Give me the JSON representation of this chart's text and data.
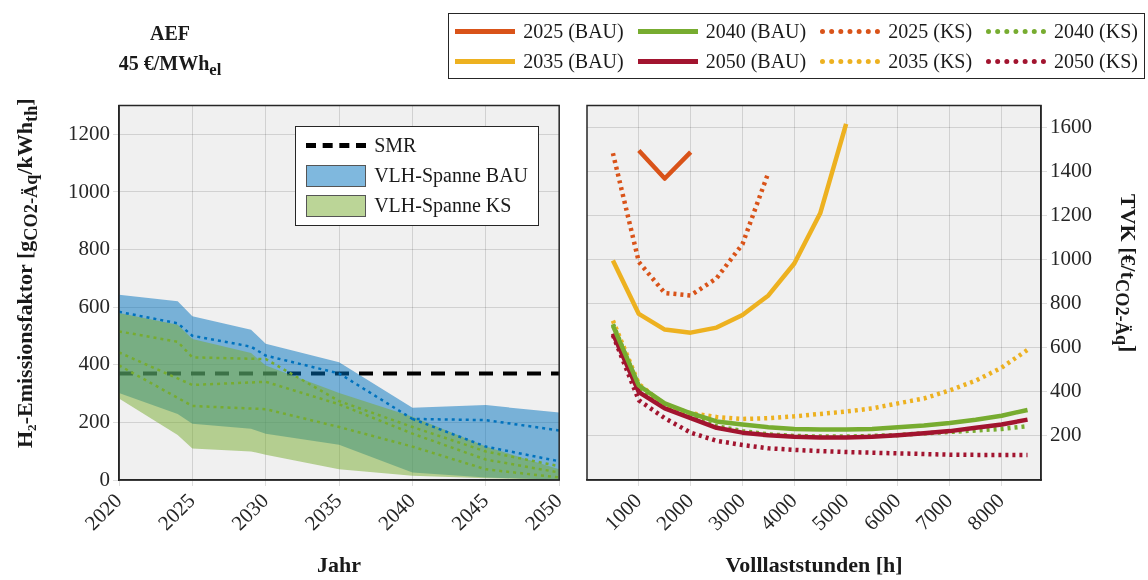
{
  "chart_data": [
    {
      "type": "line",
      "title": "AEF",
      "subtitle": "45 €/MWh$_{el}$",
      "xlabel": "Jahr",
      "ylabel": "H₂-Emissionsfaktor [g$_{CO2-Äq}$/kWh$_{th}$]",
      "xlim": [
        2020,
        2050
      ],
      "xticks": [
        2020,
        2025,
        2030,
        2035,
        2040,
        2045,
        2050
      ],
      "ylim": [
        0,
        1300
      ],
      "yticks": [
        0,
        200,
        400,
        600,
        800,
        1000,
        1200
      ],
      "grid": true,
      "legend": "top right",
      "ref_lines": [
        {
          "axis": "y",
          "value": 370,
          "label": "SMR",
          "color": "#000000",
          "line_style": "dashed"
        }
      ],
      "series": [
        {
          "name": "VLH-Spanne BAU",
          "color": "#0072bd",
          "line_style": "dotted",
          "x": [
            2020,
            2024,
            2025,
            2029,
            2030,
            2035,
            2040,
            2045,
            2050
          ],
          "values": [
            584,
            544,
            501,
            463,
            432,
            370,
            212,
            208,
            172
          ],
          "lower": [
            302,
            229,
            195,
            178,
            161,
            122,
            26,
            9,
            1
          ],
          "upper": [
            643,
            621,
            569,
            522,
            473,
            409,
            251,
            260,
            234
          ]
        },
        {
          "name": "VLH-Spanne KS",
          "color": "#77ac30",
          "line_style": "dotted",
          "x": [
            2020,
            2024,
            2025,
            2029,
            2030,
            2035,
            2040,
            2045,
            2050
          ],
          "values": [
            516,
            480,
            426,
            421,
            420,
            274,
            184,
            99,
            48
          ],
          "lower": [
            283,
            156,
            109,
            99,
            88,
            37,
            15,
            6,
            1
          ],
          "upper": [
            580,
            539,
            490,
            441,
            398,
            302,
            220,
            116,
            37
          ]
        },
        {
          "color": "#0072bd",
          "line_style": "dotted",
          "x": [
            2040,
            2045,
            2050
          ],
          "values": [
            212,
            116,
            65
          ]
        },
        {
          "color": "#77ac30",
          "line_style": "dotted",
          "x": [
            2020,
            2025,
            2030,
            2035,
            2040,
            2045,
            2050
          ],
          "values": [
            443,
            330,
            341,
            263,
            161,
            71,
            26
          ]
        },
        {
          "color": "#77ac30",
          "line_style": "dotted",
          "x": [
            2020,
            2025,
            2030,
            2035,
            2040,
            2045,
            2050
          ],
          "values": [
            398,
            257,
            246,
            184,
            116,
            37,
            9
          ]
        }
      ]
    },
    {
      "type": "line",
      "xlabel": "Volllaststunden [h]",
      "y2label": "TVK [€/t$_{CO2-Äq}$]",
      "xlim": [
        0,
        8760
      ],
      "xticks": [
        1000,
        2000,
        3000,
        4000,
        5000,
        6000,
        7000,
        8000
      ],
      "y2lim": [
        0,
        1700
      ],
      "y2ticks": [
        200,
        400,
        600,
        800,
        1000,
        1200,
        1400,
        1600
      ],
      "grid": true,
      "legend": "top",
      "x": [
        500,
        1000,
        1500,
        2000,
        2500,
        3000,
        3500,
        4000,
        4500,
        5000,
        5500,
        6000,
        6500,
        7000,
        7500,
        8000,
        8500
      ],
      "series": [
        {
          "name": "2025 (BAU)",
          "color": "#d95319",
          "line_style": "solid",
          "axis": "y2",
          "values": [
            null,
            1496,
            1369,
            1489,
            null,
            null,
            null,
            null,
            null,
            null,
            null,
            null,
            null,
            null,
            null,
            null,
            null
          ]
        },
        {
          "name": "2035 (BAU)",
          "color": "#edb120",
          "line_style": "solid",
          "axis": "y2",
          "values": [
            997,
            754,
            683,
            669,
            692,
            749,
            838,
            983,
            1211,
            1617,
            null,
            null,
            null,
            null,
            null,
            null,
            null
          ]
        },
        {
          "name": "2040 (BAU)",
          "color": "#77ac30",
          "line_style": "solid",
          "axis": "y2",
          "values": [
            701,
            429,
            348,
            303,
            266,
            252,
            240,
            232,
            229,
            229,
            232,
            240,
            247,
            259,
            274,
            292,
            318
          ]
        },
        {
          "name": "2050 (BAU)",
          "color": "#a2142f",
          "line_style": "solid",
          "axis": "y2",
          "values": [
            665,
            399,
            325,
            281,
            237,
            215,
            203,
            196,
            193,
            193,
            196,
            203,
            212,
            222,
            237,
            252,
            274
          ]
        },
        {
          "name": "2025 (KS)",
          "color": "#d95319",
          "line_style": "dotted",
          "axis": "y2",
          "values": [
            1484,
            990,
            849,
            838,
            916,
            1071,
            1396,
            null,
            null,
            null,
            null,
            null,
            null,
            null,
            null,
            null,
            null
          ]
        },
        {
          "name": "2035 (KS)",
          "color": "#edb120",
          "line_style": "dotted",
          "axis": "y2",
          "values": [
            724,
            436,
            340,
            303,
            286,
            277,
            281,
            289,
            300,
            311,
            325,
            348,
            370,
            407,
            451,
            510,
            591
          ]
        },
        {
          "name": "2040 (KS)",
          "color": "#77ac30",
          "line_style": "dotted",
          "axis": "y2",
          "values": [
            708,
            421,
            333,
            289,
            244,
            222,
            207,
            200,
            197,
            197,
            200,
            204,
            212,
            218,
            225,
            232,
            244
          ]
        },
        {
          "name": "2050 (KS)",
          "color": "#a2142f",
          "line_style": "dotted",
          "axis": "y2",
          "values": [
            658,
            362,
            281,
            215,
            178,
            159,
            144,
            137,
            131,
            127,
            124,
            121,
            118,
            115,
            114,
            114,
            114
          ]
        }
      ]
    }
  ]
}
